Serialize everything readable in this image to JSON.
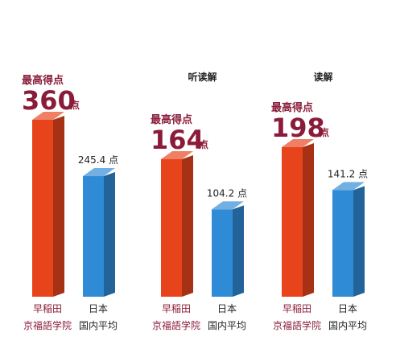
{
  "chart_data": [
    {
      "type": "bar",
      "title": "",
      "categories": [
        [
          "早稲田",
          "京福語学院"
        ],
        [
          "日本",
          "国内平均"
        ]
      ],
      "values": [
        360,
        245.4
      ],
      "labels": {
        "school": {
          "caption": "最高得点",
          "value": "360",
          "unit": "点"
        },
        "japan": {
          "text": "245.4 点"
        }
      },
      "colors": {
        "school": "#e8441c",
        "japan": "#2f8bd6"
      }
    },
    {
      "type": "bar",
      "title": "听读解",
      "categories": [
        [
          "早稲田",
          "京福語学院"
        ],
        [
          "日本",
          "国内平均"
        ]
      ],
      "values": [
        164,
        104.2
      ],
      "labels": {
        "school": {
          "caption": "最高得点",
          "value": "164",
          "unit": "点"
        },
        "japan": {
          "text": "104.2 点"
        }
      },
      "colors": {
        "school": "#e8441c",
        "japan": "#2f8bd6"
      }
    },
    {
      "type": "bar",
      "title": "读解",
      "categories": [
        [
          "早稲田",
          "京福語学院"
        ],
        [
          "日本",
          "国内平均"
        ]
      ],
      "values": [
        198,
        141.2
      ],
      "labels": {
        "school": {
          "caption": "最高得点",
          "value": "198",
          "unit": "点"
        },
        "japan": {
          "text": "141.2 点"
        }
      },
      "colors": {
        "school": "#e8441c",
        "japan": "#2f8bd6"
      }
    }
  ]
}
